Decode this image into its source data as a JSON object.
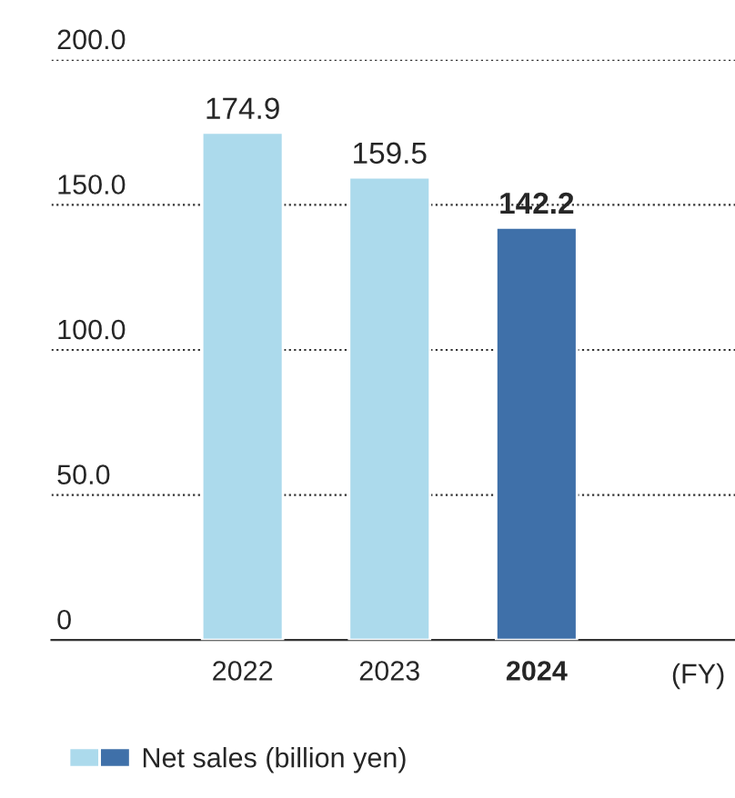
{
  "chart_data": {
    "type": "bar",
    "categories": [
      "2022",
      "2023",
      "2024"
    ],
    "series": [
      {
        "name": "Net sales (billion yen)",
        "values": [
          174.9,
          159.5,
          142.2
        ],
        "colors": [
          "#acdaec",
          "#acdaec",
          "#3f70a9"
        ]
      }
    ],
    "ylim": [
      0,
      200
    ],
    "yticks": [
      {
        "value": 0,
        "label": "0"
      },
      {
        "value": 50,
        "label": "50.0"
      },
      {
        "value": 100,
        "label": "100.0"
      },
      {
        "value": 150,
        "label": "150.0"
      },
      {
        "value": 200,
        "label": "200.0"
      }
    ],
    "grid": "y",
    "data_labels": true,
    "legend": "bottom",
    "annotations": [
      "(FY)"
    ]
  }
}
